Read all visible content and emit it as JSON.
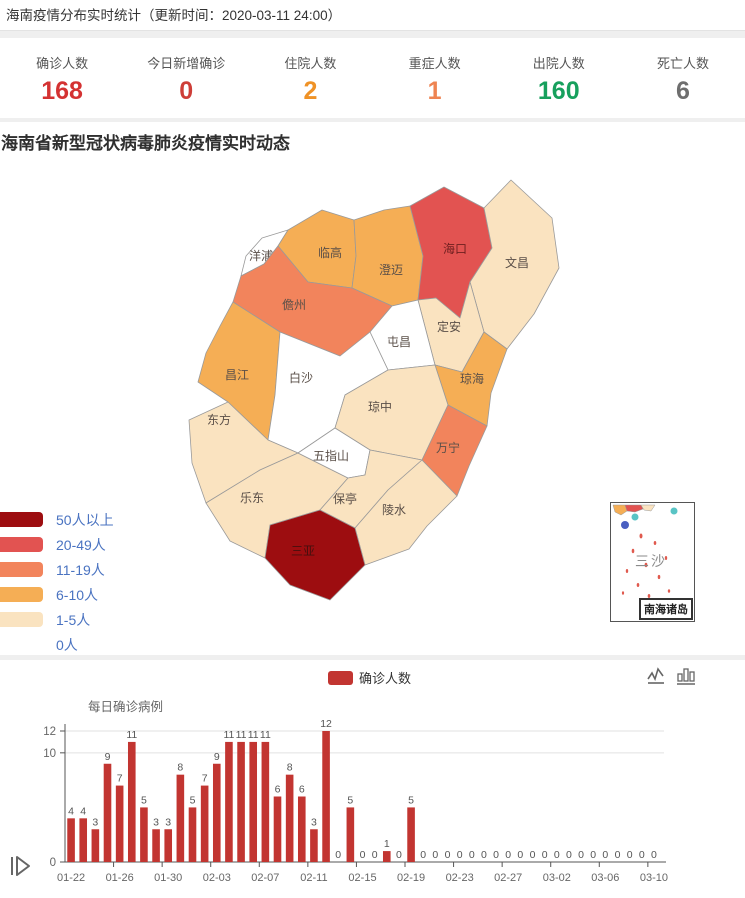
{
  "header": {
    "title": "海南疫情分布实时统计（更新时间：2020-03-11 24:00）"
  },
  "stats": {
    "items": [
      {
        "label": "确诊人数",
        "value": "168",
        "color": "#d43232"
      },
      {
        "label": "今日新增确诊",
        "value": "0",
        "color": "#ce3e38"
      },
      {
        "label": "住院人数",
        "value": "2",
        "color": "#ef9226"
      },
      {
        "label": "重症人数",
        "value": "1",
        "color": "#ee8452"
      },
      {
        "label": "出院人数",
        "value": "160",
        "color": "#17a05d"
      },
      {
        "label": "死亡人数",
        "value": "6",
        "color": "#6e6e6e"
      }
    ]
  },
  "map": {
    "title": "海南省新型冠状病毒肺炎疫情实时动态",
    "legend": [
      {
        "label": "50人以上",
        "color": "#9d0d10"
      },
      {
        "label": "20-49人",
        "color": "#e25351"
      },
      {
        "label": "11-19人",
        "color": "#f2845c"
      },
      {
        "label": "6-10人",
        "color": "#f5ae55"
      },
      {
        "label": "1-5人",
        "color": "#fae3c0"
      },
      {
        "label": "0人",
        "color": "#ffffff"
      }
    ],
    "regions": [
      {
        "id": "yangpu",
        "name": "洋浦",
        "level": "0人"
      },
      {
        "id": "lingao",
        "name": "临高",
        "level": "6-10人"
      },
      {
        "id": "chengmai",
        "name": "澄迈",
        "level": "6-10人"
      },
      {
        "id": "haikou",
        "name": "海口",
        "level": "20-49人"
      },
      {
        "id": "wenchang",
        "name": "文昌",
        "level": "1-5人"
      },
      {
        "id": "danzhou",
        "name": "儋州",
        "level": "11-19人"
      },
      {
        "id": "dingan",
        "name": "定安",
        "level": "1-5人"
      },
      {
        "id": "tunchang",
        "name": "屯昌",
        "level": "0人"
      },
      {
        "id": "qionghai",
        "name": "琼海",
        "level": "6-10人"
      },
      {
        "id": "changjiang",
        "name": "昌江",
        "level": "6-10人"
      },
      {
        "id": "baisha",
        "name": "白沙",
        "level": "0人"
      },
      {
        "id": "dongfang",
        "name": "东方",
        "level": "1-5人"
      },
      {
        "id": "qiongzhong",
        "name": "琼中",
        "level": "1-5人"
      },
      {
        "id": "wanning",
        "name": "万宁",
        "level": "11-19人"
      },
      {
        "id": "ledong",
        "name": "乐东",
        "level": "1-5人"
      },
      {
        "id": "wuzhishan",
        "name": "五指山",
        "level": "0人"
      },
      {
        "id": "baoting",
        "name": "保亭",
        "level": "1-5人"
      },
      {
        "id": "lingshui",
        "name": "陵水",
        "level": "1-5人"
      },
      {
        "id": "sanya",
        "name": "三亚",
        "level": "50人以上"
      }
    ],
    "inset": {
      "label": "三沙",
      "caption": "南海诸岛"
    }
  },
  "chart_data": {
    "type": "bar",
    "title": "每日确诊病例",
    "legend": "确诊人数",
    "bar_color": "#c23531",
    "ylim": [
      0,
      12
    ],
    "yticks": [
      0,
      10,
      12
    ],
    "xtick_interval": 4,
    "categories": [
      "01-22",
      "01-23",
      "01-24",
      "01-25",
      "01-26",
      "01-27",
      "01-28",
      "01-29",
      "01-30",
      "01-31",
      "02-01",
      "02-02",
      "02-03",
      "02-04",
      "02-05",
      "02-06",
      "02-07",
      "02-08",
      "02-09",
      "02-10",
      "02-11",
      "02-12",
      "02-13",
      "02-14",
      "02-15",
      "02-16",
      "02-17",
      "02-18",
      "02-19",
      "02-20",
      "02-21",
      "02-22",
      "02-23",
      "02-24",
      "02-25",
      "02-26",
      "02-27",
      "02-28",
      "02-29",
      "03-01",
      "03-02",
      "03-03",
      "03-04",
      "03-05",
      "03-06",
      "03-07",
      "03-08",
      "03-09",
      "03-10"
    ],
    "values": [
      4,
      4,
      3,
      9,
      7,
      11,
      5,
      3,
      3,
      8,
      5,
      7,
      9,
      11,
      11,
      11,
      11,
      6,
      8,
      6,
      3,
      12,
      0,
      5,
      0,
      0,
      1,
      0,
      5,
      0,
      0,
      0,
      0,
      0,
      0,
      0,
      0,
      0,
      0,
      0,
      0,
      0,
      0,
      0,
      0,
      0,
      0,
      0,
      0
    ]
  }
}
